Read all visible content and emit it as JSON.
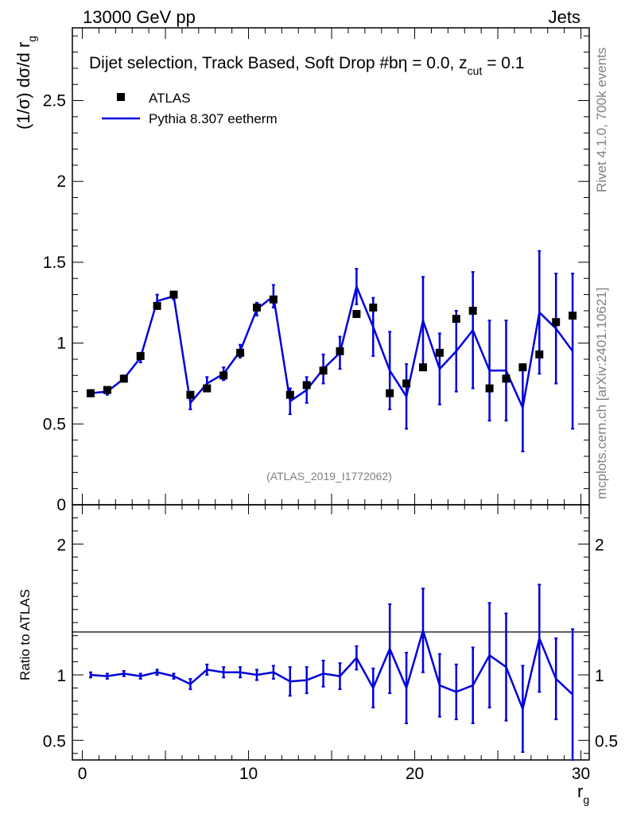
{
  "header": {
    "left": "13000 GeV pp",
    "right": "Jets"
  },
  "side": {
    "rivet": "Rivet 4.1.0,  700k events",
    "mcplots": "mcplots.cern.ch [arXiv:2401.10621]"
  },
  "chart_data": {
    "type": "scatter",
    "title": "Dijet selection, Track Based, Soft Drop #b",
    "title_suffix": "η = 0.0, z",
    "title_sub": "cut",
    "title_end": " = 0.1",
    "ylabel": "(1/σ) dσ/d r",
    "ylabel_sub": "g",
    "xlabel": "r",
    "xlabel_sub": "g",
    "analysis_tag": "(ATLAS_2019_I1772062)",
    "xlim": [
      -0.6,
      30.5
    ],
    "ylim": [
      0,
      2.95
    ],
    "ratio_ylim": [
      0.35,
      2.3
    ],
    "ratio_ylabel": "Ratio to ATLAS",
    "x_ticks": [
      "0",
      "10",
      "20",
      "30"
    ],
    "y_ticks": [
      "0",
      "0.5",
      "1",
      "1.5",
      "2",
      "2.5"
    ],
    "ratio_ticks": [
      "0.5",
      "1",
      "2"
    ],
    "x": [
      0.5,
      1.5,
      2.5,
      3.5,
      4.5,
      5.5,
      6.5,
      7.5,
      8.5,
      9.5,
      10.5,
      11.5,
      12.5,
      13.5,
      14.5,
      15.5,
      16.5,
      17.5,
      18.5,
      19.5,
      20.5,
      21.5,
      22.5,
      23.5,
      24.5,
      25.5,
      26.5,
      27.5,
      28.5,
      29.5
    ],
    "series": [
      {
        "name": "ATLAS",
        "color": "#000000",
        "values": [
          0.69,
          0.71,
          0.78,
          0.92,
          1.23,
          1.3,
          0.68,
          0.72,
          0.8,
          0.94,
          1.22,
          1.27,
          0.68,
          0.74,
          0.83,
          0.95,
          1.18,
          1.22,
          0.69,
          0.75,
          0.85,
          0.94,
          1.15,
          1.2,
          0.72,
          0.78,
          0.85,
          0.93,
          1.13,
          1.17
        ]
      },
      {
        "name": "Pythia 8.307 eetherm",
        "color": "#0000dd",
        "values": [
          0.69,
          0.7,
          0.78,
          0.91,
          1.26,
          1.29,
          0.63,
          0.75,
          0.81,
          0.95,
          1.21,
          1.29,
          0.64,
          0.71,
          0.84,
          0.94,
          1.35,
          1.1,
          0.83,
          0.67,
          1.14,
          0.84,
          0.95,
          1.08,
          0.83,
          0.83,
          0.6,
          1.19,
          1.09,
          0.95
        ],
        "errors": [
          0.02,
          0.02,
          0.02,
          0.03,
          0.04,
          0.02,
          0.04,
          0.04,
          0.04,
          0.04,
          0.04,
          0.07,
          0.08,
          0.08,
          0.09,
          0.1,
          0.11,
          0.18,
          0.24,
          0.2,
          0.27,
          0.22,
          0.25,
          0.36,
          0.31,
          0.31,
          0.27,
          0.38,
          0.34,
          0.48
        ]
      }
    ],
    "ratio": {
      "values": [
        1.0,
        0.99,
        1.01,
        0.99,
        1.02,
        0.99,
        0.93,
        1.04,
        1.02,
        1.02,
        1.0,
        1.02,
        0.95,
        0.96,
        1.01,
        0.99,
        1.13,
        0.9,
        1.2,
        0.9,
        1.34,
        0.92,
        0.87,
        0.92,
        1.15,
        1.06,
        0.74,
        1.28,
        0.97,
        0.85
      ],
      "errors": [
        0.02,
        0.02,
        0.02,
        0.02,
        0.02,
        0.02,
        0.04,
        0.04,
        0.04,
        0.04,
        0.04,
        0.05,
        0.11,
        0.1,
        0.1,
        0.1,
        0.09,
        0.15,
        0.34,
        0.27,
        0.32,
        0.24,
        0.21,
        0.29,
        0.4,
        0.41,
        0.33,
        0.41,
        0.31,
        0.5
      ]
    }
  }
}
